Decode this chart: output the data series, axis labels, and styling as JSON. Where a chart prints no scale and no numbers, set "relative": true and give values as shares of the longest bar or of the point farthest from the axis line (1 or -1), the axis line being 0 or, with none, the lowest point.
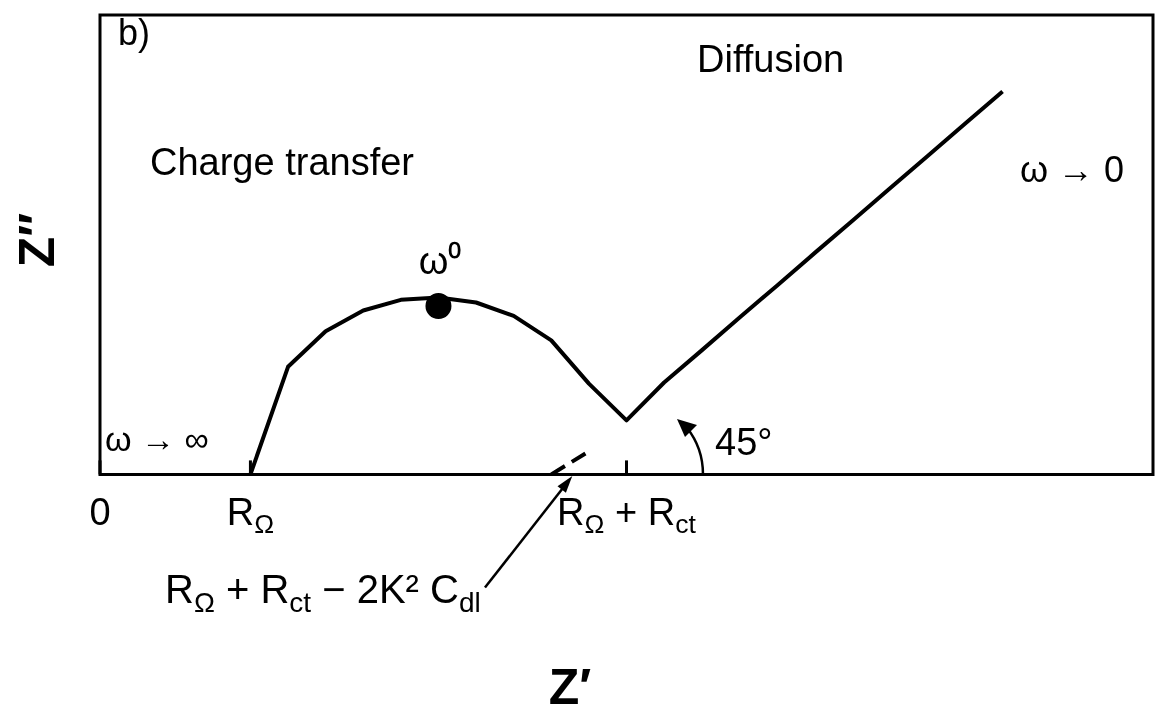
{
  "chart_data": {
    "type": "line",
    "relative": true,
    "xlabel": "Z′",
    "ylabel": "Z″",
    "categories": [
      "0",
      null,
      null,
      null,
      "R$_{Ω}$",
      null,
      null,
      null,
      null,
      null,
      null,
      null,
      null,
      null,
      "R$_{Ω}$ + R$_{ct}$",
      null,
      null,
      null,
      null,
      null,
      null,
      null,
      null,
      null,
      null,
      null,
      null,
      null,
      null
    ],
    "series": [
      {
        "color": "#000000",
        "marker": "none",
        "line_style": "solid",
        "values": [
          null,
          null,
          null,
          null,
          0,
          0.281,
          0.374,
          0.428,
          0.456,
          0.462,
          0.449,
          0.414,
          0.35,
          0.237,
          0.141,
          0.24,
          0.324,
          0.409,
          0.493,
          0.578,
          0.662,
          0.747,
          0.831,
          0.916,
          1.0,
          null,
          null,
          null,
          null
        ]
      },
      {
        "color": "#000000",
        "marker": "none",
        "line_style": "dashed",
        "values": [
          null,
          null,
          null,
          null,
          null,
          null,
          null,
          null,
          null,
          null,
          null,
          null,
          0,
          0.06,
          null,
          null,
          null,
          null,
          null,
          null,
          null,
          null,
          null,
          null,
          null,
          null,
          null,
          null,
          null
        ]
      },
      {
        "color": "#000000",
        "marker": "circle",
        "values": [
          null,
          null,
          null,
          null,
          null,
          null,
          null,
          null,
          null,
          0.44,
          null,
          null,
          null,
          null,
          null,
          null,
          null,
          null,
          null,
          null,
          null,
          null,
          null,
          null,
          null,
          null,
          null,
          null,
          null
        ]
      }
    ],
    "annotations": [
      "b)",
      "Diffusion",
      "Charge transfer",
      "ω → 0",
      "ω → ∞",
      "ω⁰",
      "45°",
      "R$_{Ω}$ + R$_{ct}$ − 2K² C$_{dl}$"
    ]
  }
}
